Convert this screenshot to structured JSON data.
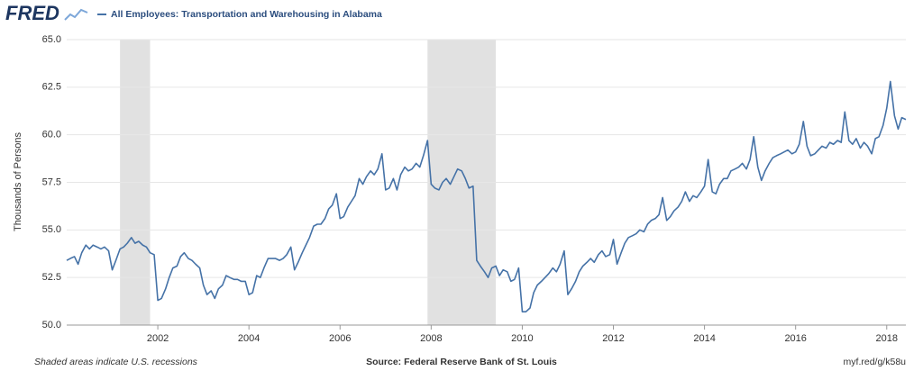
{
  "logo": "FRED",
  "footer": {
    "note": "Shaded areas indicate U.S. recessions",
    "source": "Source: Federal Reserve Bank of St. Louis",
    "link": "myf.red/g/k58u"
  },
  "chart_data": {
    "type": "line",
    "ylabel": "Thousands of Persons",
    "xlim": [
      2000,
      2018.42
    ],
    "xticks": [
      2002,
      2004,
      2006,
      2008,
      2010,
      2012,
      2014,
      2016,
      2018
    ],
    "ylim": [
      50,
      65
    ],
    "yticks": [
      {
        "value": 50,
        "label": "50.0"
      },
      52.5,
      {
        "value": 55,
        "label": "55.0"
      },
      57.5,
      {
        "value": 60,
        "label": "60.0"
      },
      62.5,
      {
        "value": 65,
        "label": "65.0"
      }
    ],
    "grid": true,
    "recessions": [
      [
        2001.17,
        2001.83
      ],
      [
        2007.92,
        2009.42
      ]
    ],
    "x": [
      2000,
      2000.08,
      2000.17,
      2000.25,
      2000.33,
      2000.42,
      2000.5,
      2000.58,
      2000.67,
      2000.75,
      2000.83,
      2000.92,
      2001,
      2001.08,
      2001.17,
      2001.25,
      2001.33,
      2001.42,
      2001.5,
      2001.58,
      2001.67,
      2001.75,
      2001.83,
      2001.92,
      2002,
      2002.08,
      2002.17,
      2002.25,
      2002.33,
      2002.42,
      2002.5,
      2002.58,
      2002.67,
      2002.75,
      2002.83,
      2002.92,
      2003,
      2003.08,
      2003.17,
      2003.25,
      2003.33,
      2003.42,
      2003.5,
      2003.58,
      2003.67,
      2003.75,
      2003.83,
      2003.92,
      2004,
      2004.08,
      2004.17,
      2004.25,
      2004.33,
      2004.42,
      2004.5,
      2004.58,
      2004.67,
      2004.75,
      2004.83,
      2004.92,
      2005,
      2005.08,
      2005.17,
      2005.25,
      2005.33,
      2005.42,
      2005.5,
      2005.58,
      2005.67,
      2005.75,
      2005.83,
      2005.92,
      2006,
      2006.08,
      2006.17,
      2006.25,
      2006.33,
      2006.42,
      2006.5,
      2006.58,
      2006.67,
      2006.75,
      2006.83,
      2006.92,
      2007,
      2007.08,
      2007.17,
      2007.25,
      2007.33,
      2007.42,
      2007.5,
      2007.58,
      2007.67,
      2007.75,
      2007.83,
      2007.92,
      2008,
      2008.08,
      2008.17,
      2008.25,
      2008.33,
      2008.42,
      2008.5,
      2008.58,
      2008.67,
      2008.75,
      2008.83,
      2008.92,
      2009,
      2009.08,
      2009.17,
      2009.25,
      2009.33,
      2009.42,
      2009.5,
      2009.58,
      2009.67,
      2009.75,
      2009.83,
      2009.92,
      2010,
      2010.08,
      2010.17,
      2010.25,
      2010.33,
      2010.42,
      2010.5,
      2010.58,
      2010.67,
      2010.75,
      2010.83,
      2010.92,
      2011,
      2011.08,
      2011.17,
      2011.25,
      2011.33,
      2011.42,
      2011.5,
      2011.58,
      2011.67,
      2011.75,
      2011.83,
      2011.92,
      2012,
      2012.08,
      2012.17,
      2012.25,
      2012.33,
      2012.42,
      2012.5,
      2012.58,
      2012.67,
      2012.75,
      2012.83,
      2012.92,
      2013,
      2013.08,
      2013.17,
      2013.25,
      2013.33,
      2013.42,
      2013.5,
      2013.58,
      2013.67,
      2013.75,
      2013.83,
      2013.92,
      2014,
      2014.08,
      2014.17,
      2014.25,
      2014.33,
      2014.42,
      2014.5,
      2014.58,
      2014.67,
      2014.75,
      2014.83,
      2014.92,
      2015,
      2015.08,
      2015.17,
      2015.25,
      2015.33,
      2015.42,
      2015.5,
      2015.58,
      2015.67,
      2015.75,
      2015.83,
      2015.92,
      2016,
      2016.08,
      2016.17,
      2016.25,
      2016.33,
      2016.42,
      2016.5,
      2016.58,
      2016.67,
      2016.75,
      2016.83,
      2016.92,
      2017,
      2017.08,
      2017.17,
      2017.25,
      2017.33,
      2017.42,
      2017.5,
      2017.58,
      2017.67,
      2017.75,
      2017.83,
      2017.92,
      2018,
      2018.08,
      2018.17,
      2018.25,
      2018.33,
      2018.42
    ],
    "series": [
      {
        "name": "All Employees: Transportation and Warehousing in Alabama",
        "color": "#4572a7",
        "values": [
          53.4,
          53.5,
          53.6,
          53.2,
          53.8,
          54.2,
          54.0,
          54.2,
          54.1,
          54.0,
          54.1,
          53.9,
          52.9,
          53.4,
          54.0,
          54.1,
          54.3,
          54.6,
          54.3,
          54.4,
          54.2,
          54.1,
          53.8,
          53.7,
          51.3,
          51.4,
          51.9,
          52.5,
          53.0,
          53.1,
          53.6,
          53.8,
          53.5,
          53.4,
          53.2,
          53.0,
          52.1,
          51.6,
          51.8,
          51.4,
          51.9,
          52.1,
          52.6,
          52.5,
          52.4,
          52.4,
          52.3,
          52.3,
          51.6,
          51.7,
          52.6,
          52.5,
          53.0,
          53.5,
          53.5,
          53.5,
          53.4,
          53.5,
          53.7,
          54.1,
          52.9,
          53.3,
          53.8,
          54.2,
          54.6,
          55.2,
          55.3,
          55.3,
          55.6,
          56.1,
          56.3,
          56.9,
          55.6,
          55.7,
          56.2,
          56.5,
          56.8,
          57.7,
          57.4,
          57.8,
          58.1,
          57.9,
          58.2,
          59.0,
          57.1,
          57.2,
          57.7,
          57.1,
          57.9,
          58.3,
          58.1,
          58.2,
          58.5,
          58.3,
          58.9,
          59.7,
          57.4,
          57.2,
          57.1,
          57.5,
          57.7,
          57.4,
          57.8,
          58.2,
          58.1,
          57.7,
          57.2,
          57.3,
          53.4,
          53.1,
          52.8,
          52.5,
          53.0,
          53.1,
          52.6,
          52.9,
          52.8,
          52.3,
          52.4,
          53.0,
          50.7,
          50.7,
          50.9,
          51.7,
          52.1,
          52.3,
          52.5,
          52.7,
          53.0,
          52.8,
          53.2,
          53.9,
          51.6,
          51.9,
          52.3,
          52.8,
          53.1,
          53.3,
          53.5,
          53.3,
          53.7,
          53.9,
          53.6,
          53.7,
          54.5,
          53.2,
          53.8,
          54.3,
          54.6,
          54.7,
          54.8,
          55.0,
          54.9,
          55.3,
          55.5,
          55.6,
          55.8,
          56.7,
          55.5,
          55.7,
          56.0,
          56.2,
          56.5,
          57.0,
          56.5,
          56.8,
          56.7,
          57.0,
          57.3,
          58.7,
          57.0,
          56.9,
          57.4,
          57.7,
          57.7,
          58.1,
          58.2,
          58.3,
          58.5,
          58.2,
          58.7,
          59.9,
          58.3,
          57.6,
          58.1,
          58.5,
          58.8,
          58.9,
          59.0,
          59.1,
          59.2,
          59.0,
          59.1,
          59.5,
          60.7,
          59.4,
          58.9,
          59.0,
          59.2,
          59.4,
          59.3,
          59.6,
          59.5,
          59.7,
          59.6,
          61.2,
          59.7,
          59.5,
          59.8,
          59.3,
          59.6,
          59.4,
          59.0,
          59.8,
          59.9,
          60.5,
          61.4,
          62.8,
          61.0,
          60.3,
          60.9,
          60.8
        ]
      }
    ]
  }
}
